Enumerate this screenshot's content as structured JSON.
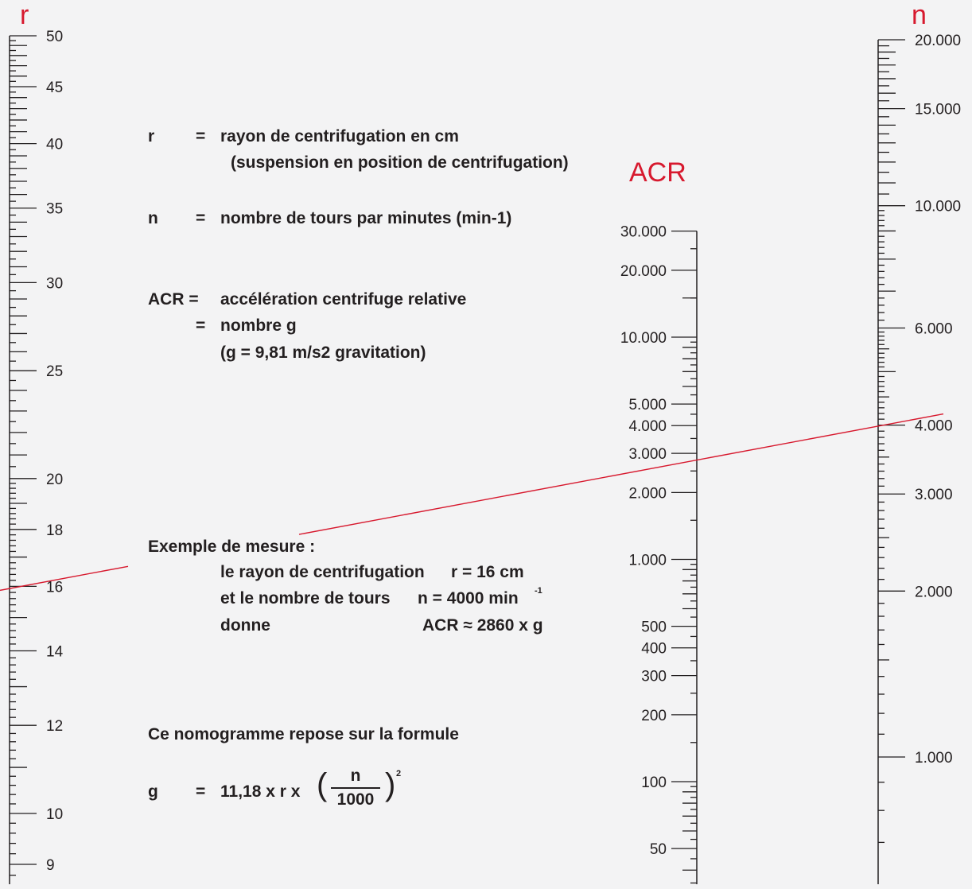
{
  "colors": {
    "accent": "#d7192e",
    "ink": "#231f20",
    "background": "#f3f3f4"
  },
  "scales": {
    "r": {
      "letter": "r",
      "min": 9,
      "max": 50,
      "labels": [
        "50",
        "45",
        "40",
        "35",
        "30",
        "25",
        "20",
        "18",
        "16",
        "14",
        "12",
        "10",
        "9"
      ],
      "label_values": [
        50,
        45,
        40,
        35,
        30,
        25,
        20,
        18,
        16,
        14,
        12,
        10,
        9
      ]
    },
    "acr": {
      "letter": "ACR",
      "min": 50,
      "max": 30000,
      "labels": [
        "30.000",
        "20.000",
        "10.000",
        "5.000",
        "4.000",
        "3.000",
        "2.000",
        "1.000",
        "500",
        "400",
        "300",
        "200",
        "100",
        "50"
      ],
      "label_values": [
        30000,
        20000,
        10000,
        5000,
        4000,
        3000,
        2000,
        1000,
        500,
        400,
        300,
        200,
        100,
        50
      ]
    },
    "n": {
      "letter": "n",
      "min": 700,
      "max": 20000,
      "labels": [
        "20.000",
        "15.000",
        "10.000",
        "6.000",
        "4.000",
        "3.000",
        "2.000",
        "1.000"
      ],
      "label_values": [
        20000,
        15000,
        10000,
        6000,
        4000,
        3000,
        2000,
        1000
      ]
    }
  },
  "legend": {
    "r_sym": "r",
    "r_eq": "=",
    "r_def": "rayon de centrifugation en cm",
    "r_note": "(suspension en position de centrifugation)",
    "n_sym": "n",
    "n_eq": "=",
    "n_def": "nombre de tours par minutes (min-1)",
    "acr_sym": "ACR =",
    "acr_def": "accélération centrifuge relative",
    "g_eq": "=",
    "g_def": "nombre g",
    "g_note": "(g = 9,81 m/s2 gravitation)"
  },
  "example": {
    "title": "Exemple de mesure :",
    "line1_text": "le rayon de centrifugation",
    "line1_value": "r = 16 cm",
    "line2_text": "et le nombre de tours",
    "line2_value": "n = 4000 min",
    "line2_sup": "-1",
    "line3_text": "donne",
    "line3_value": "ACR ≈ 2860 x g",
    "r_value": 16,
    "n_value": 4000,
    "acr_value": 2860
  },
  "formula": {
    "intro": "Ce nomogramme repose sur la formule",
    "lhs": "g",
    "eq": "=",
    "rhs": "11,18 x r x",
    "numerator": "n",
    "denominator": "1000",
    "open_paren": "(",
    "close_paren": ")",
    "exponent": "2"
  }
}
